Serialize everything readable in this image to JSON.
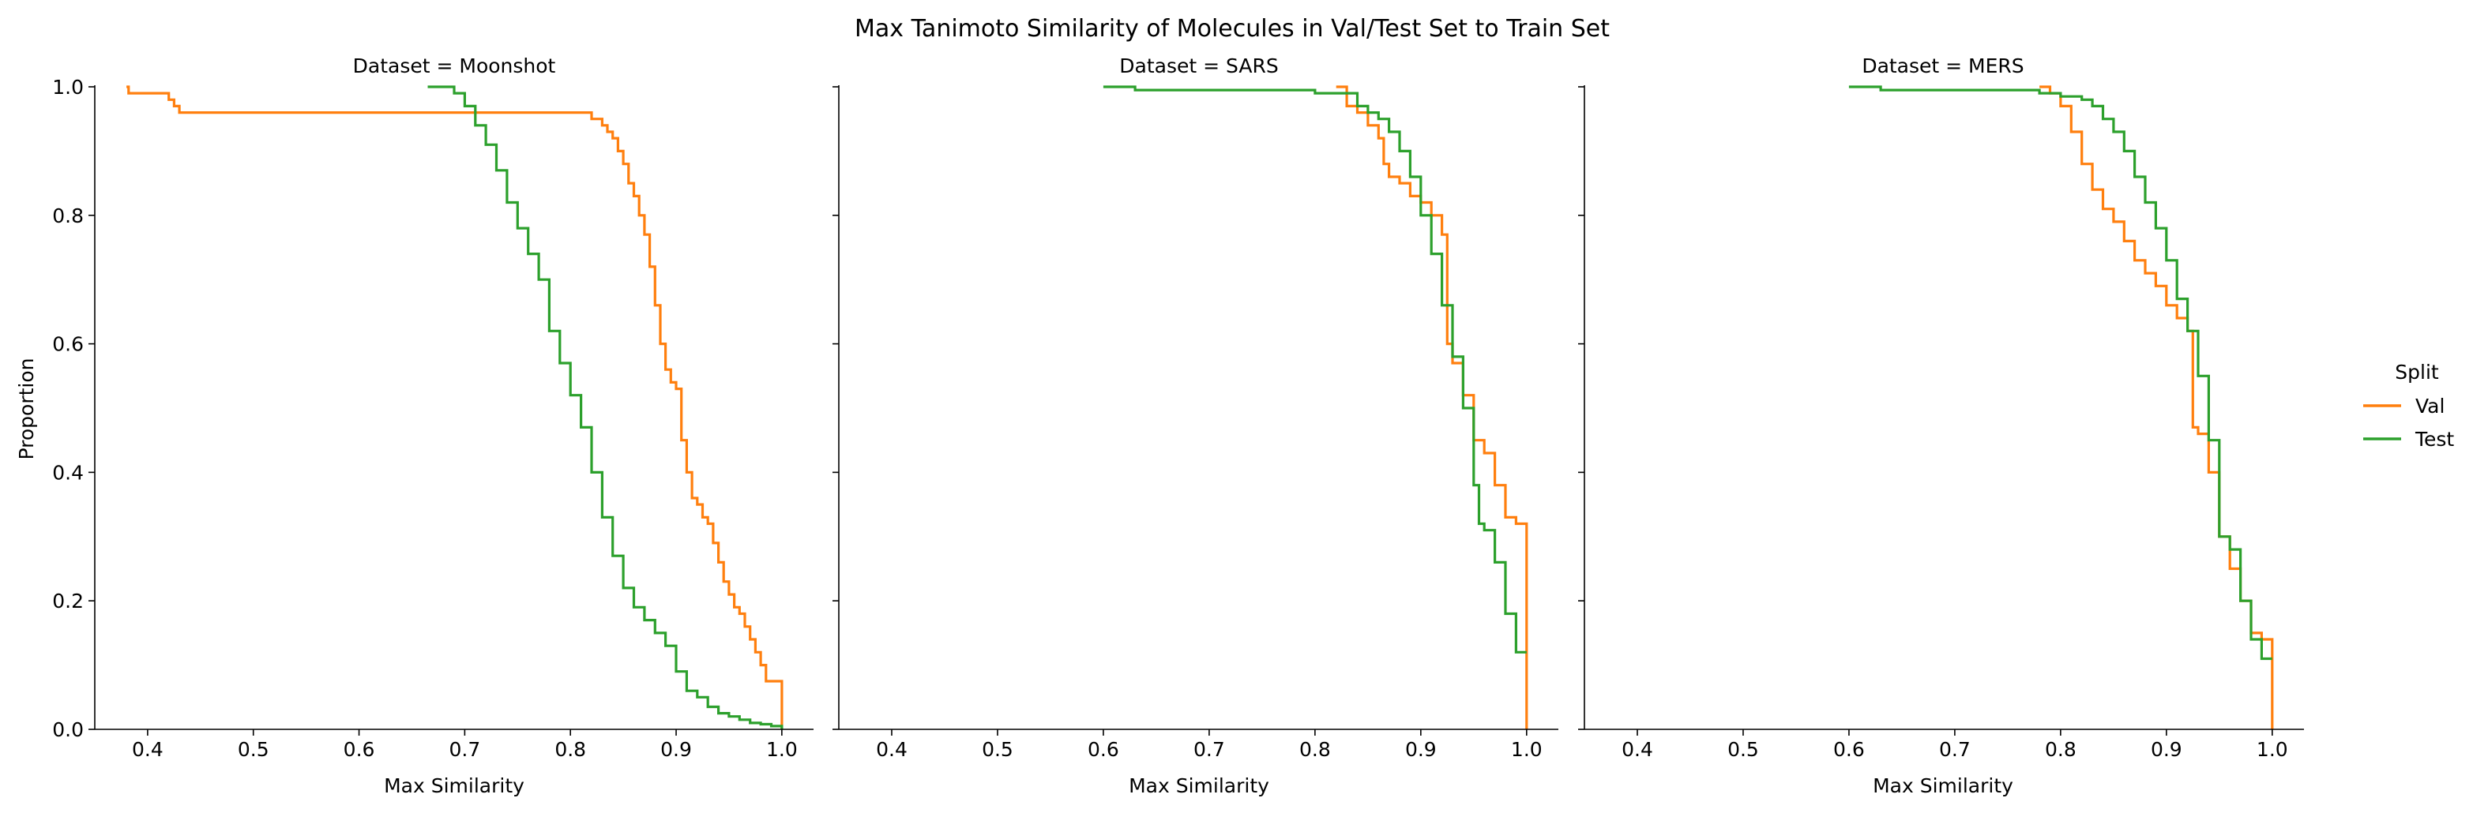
{
  "figure": {
    "title": "Max Tanimoto Similarity of Molecules in Val/Test Set to Train Set",
    "legend": {
      "title": "Split",
      "placement": "right",
      "entries": [
        {
          "label": "Val",
          "color": "#ff7f0e"
        },
        {
          "label": "Test",
          "color": "#2ca02c"
        }
      ]
    }
  },
  "chart_data": [
    {
      "type": "line",
      "step": true,
      "title": "Dataset = Moonshot",
      "xlabel": "Max Similarity",
      "ylabel": "Proportion",
      "xlim": [
        0.35,
        1.03
      ],
      "ylim": [
        0,
        1
      ],
      "xticks": [
        "0.4",
        "0.5",
        "0.6",
        "0.7",
        "0.8",
        "0.9",
        "1.0"
      ],
      "yticks": [
        "0.0",
        "0.2",
        "0.4",
        "0.6",
        "0.8",
        "1.0"
      ],
      "series": [
        {
          "name": "Val",
          "color": "#ff7f0e",
          "x": [
            0.38,
            0.382,
            0.42,
            0.425,
            0.43,
            0.8,
            0.82,
            0.83,
            0.835,
            0.84,
            0.845,
            0.85,
            0.855,
            0.86,
            0.865,
            0.87,
            0.875,
            0.88,
            0.885,
            0.89,
            0.895,
            0.9,
            0.905,
            0.91,
            0.915,
            0.92,
            0.925,
            0.93,
            0.935,
            0.94,
            0.945,
            0.95,
            0.955,
            0.96,
            0.965,
            0.97,
            0.975,
            0.98,
            0.985,
            0.99,
            1.0,
            1.0
          ],
          "y": [
            1.0,
            0.99,
            0.98,
            0.97,
            0.96,
            0.96,
            0.95,
            0.94,
            0.93,
            0.92,
            0.9,
            0.88,
            0.85,
            0.83,
            0.8,
            0.77,
            0.72,
            0.66,
            0.6,
            0.56,
            0.54,
            0.53,
            0.45,
            0.4,
            0.36,
            0.35,
            0.33,
            0.32,
            0.29,
            0.26,
            0.23,
            0.21,
            0.19,
            0.18,
            0.16,
            0.14,
            0.12,
            0.1,
            0.075,
            0.075,
            0.0,
            0.0
          ]
        },
        {
          "name": "Test",
          "color": "#2ca02c",
          "x": [
            0.665,
            0.69,
            0.7,
            0.71,
            0.72,
            0.73,
            0.74,
            0.75,
            0.76,
            0.77,
            0.78,
            0.79,
            0.8,
            0.81,
            0.82,
            0.83,
            0.84,
            0.85,
            0.86,
            0.87,
            0.88,
            0.89,
            0.9,
            0.91,
            0.92,
            0.93,
            0.94,
            0.95,
            0.96,
            0.97,
            0.98,
            0.99,
            1.0
          ],
          "y": [
            1.0,
            0.99,
            0.97,
            0.94,
            0.91,
            0.87,
            0.82,
            0.78,
            0.74,
            0.7,
            0.62,
            0.57,
            0.52,
            0.47,
            0.4,
            0.33,
            0.27,
            0.22,
            0.19,
            0.17,
            0.15,
            0.13,
            0.09,
            0.06,
            0.05,
            0.035,
            0.025,
            0.02,
            0.015,
            0.01,
            0.008,
            0.005,
            0.0
          ]
        }
      ]
    },
    {
      "type": "line",
      "step": true,
      "title": "Dataset = SARS",
      "xlabel": "Max Similarity",
      "ylabel": "",
      "xlim": [
        0.35,
        1.03
      ],
      "ylim": [
        0,
        1
      ],
      "xticks": [
        "0.4",
        "0.5",
        "0.6",
        "0.7",
        "0.8",
        "0.9",
        "1.0"
      ],
      "yticks": [],
      "series": [
        {
          "name": "Val",
          "color": "#ff7f0e",
          "x": [
            0.82,
            0.83,
            0.84,
            0.85,
            0.86,
            0.865,
            0.87,
            0.88,
            0.89,
            0.9,
            0.91,
            0.92,
            0.925,
            0.93,
            0.94,
            0.95,
            0.96,
            0.97,
            0.98,
            0.99,
            1.0,
            1.0
          ],
          "y": [
            1.0,
            0.97,
            0.96,
            0.94,
            0.92,
            0.88,
            0.86,
            0.85,
            0.83,
            0.82,
            0.8,
            0.77,
            0.6,
            0.57,
            0.52,
            0.45,
            0.43,
            0.38,
            0.33,
            0.32,
            0.31,
            0.0
          ]
        },
        {
          "name": "Test",
          "color": "#2ca02c",
          "x": [
            0.6,
            0.63,
            0.7,
            0.8,
            0.84,
            0.85,
            0.86,
            0.87,
            0.88,
            0.89,
            0.9,
            0.91,
            0.92,
            0.93,
            0.94,
            0.95,
            0.955,
            0.96,
            0.97,
            0.98,
            0.99,
            1.0
          ],
          "y": [
            1.0,
            0.995,
            0.995,
            0.99,
            0.97,
            0.96,
            0.95,
            0.93,
            0.9,
            0.86,
            0.8,
            0.74,
            0.66,
            0.58,
            0.5,
            0.38,
            0.32,
            0.31,
            0.26,
            0.18,
            0.12,
            0.12
          ]
        }
      ]
    },
    {
      "type": "line",
      "step": true,
      "title": "Dataset = MERS",
      "xlabel": "Max Similarity",
      "ylabel": "",
      "xlim": [
        0.35,
        1.03
      ],
      "ylim": [
        0,
        1
      ],
      "xticks": [
        "0.4",
        "0.5",
        "0.6",
        "0.7",
        "0.8",
        "0.9",
        "1.0"
      ],
      "yticks": [],
      "series": [
        {
          "name": "Val",
          "color": "#ff7f0e",
          "x": [
            0.78,
            0.79,
            0.8,
            0.81,
            0.82,
            0.83,
            0.84,
            0.85,
            0.86,
            0.87,
            0.88,
            0.89,
            0.9,
            0.91,
            0.92,
            0.925,
            0.93,
            0.94,
            0.95,
            0.96,
            0.97,
            0.98,
            0.99,
            1.0,
            1.0
          ],
          "y": [
            1.0,
            0.99,
            0.97,
            0.93,
            0.88,
            0.84,
            0.81,
            0.79,
            0.76,
            0.73,
            0.71,
            0.69,
            0.66,
            0.64,
            0.62,
            0.47,
            0.46,
            0.4,
            0.3,
            0.25,
            0.2,
            0.15,
            0.14,
            0.14,
            0.0
          ]
        },
        {
          "name": "Test",
          "color": "#2ca02c",
          "x": [
            0.6,
            0.63,
            0.7,
            0.78,
            0.8,
            0.82,
            0.83,
            0.84,
            0.85,
            0.86,
            0.87,
            0.88,
            0.89,
            0.9,
            0.91,
            0.92,
            0.93,
            0.94,
            0.95,
            0.96,
            0.97,
            0.98,
            0.99,
            1.0
          ],
          "y": [
            1.0,
            0.995,
            0.995,
            0.99,
            0.985,
            0.98,
            0.97,
            0.95,
            0.93,
            0.9,
            0.86,
            0.82,
            0.78,
            0.73,
            0.67,
            0.62,
            0.55,
            0.45,
            0.3,
            0.28,
            0.2,
            0.14,
            0.11,
            0.11
          ]
        }
      ]
    }
  ]
}
